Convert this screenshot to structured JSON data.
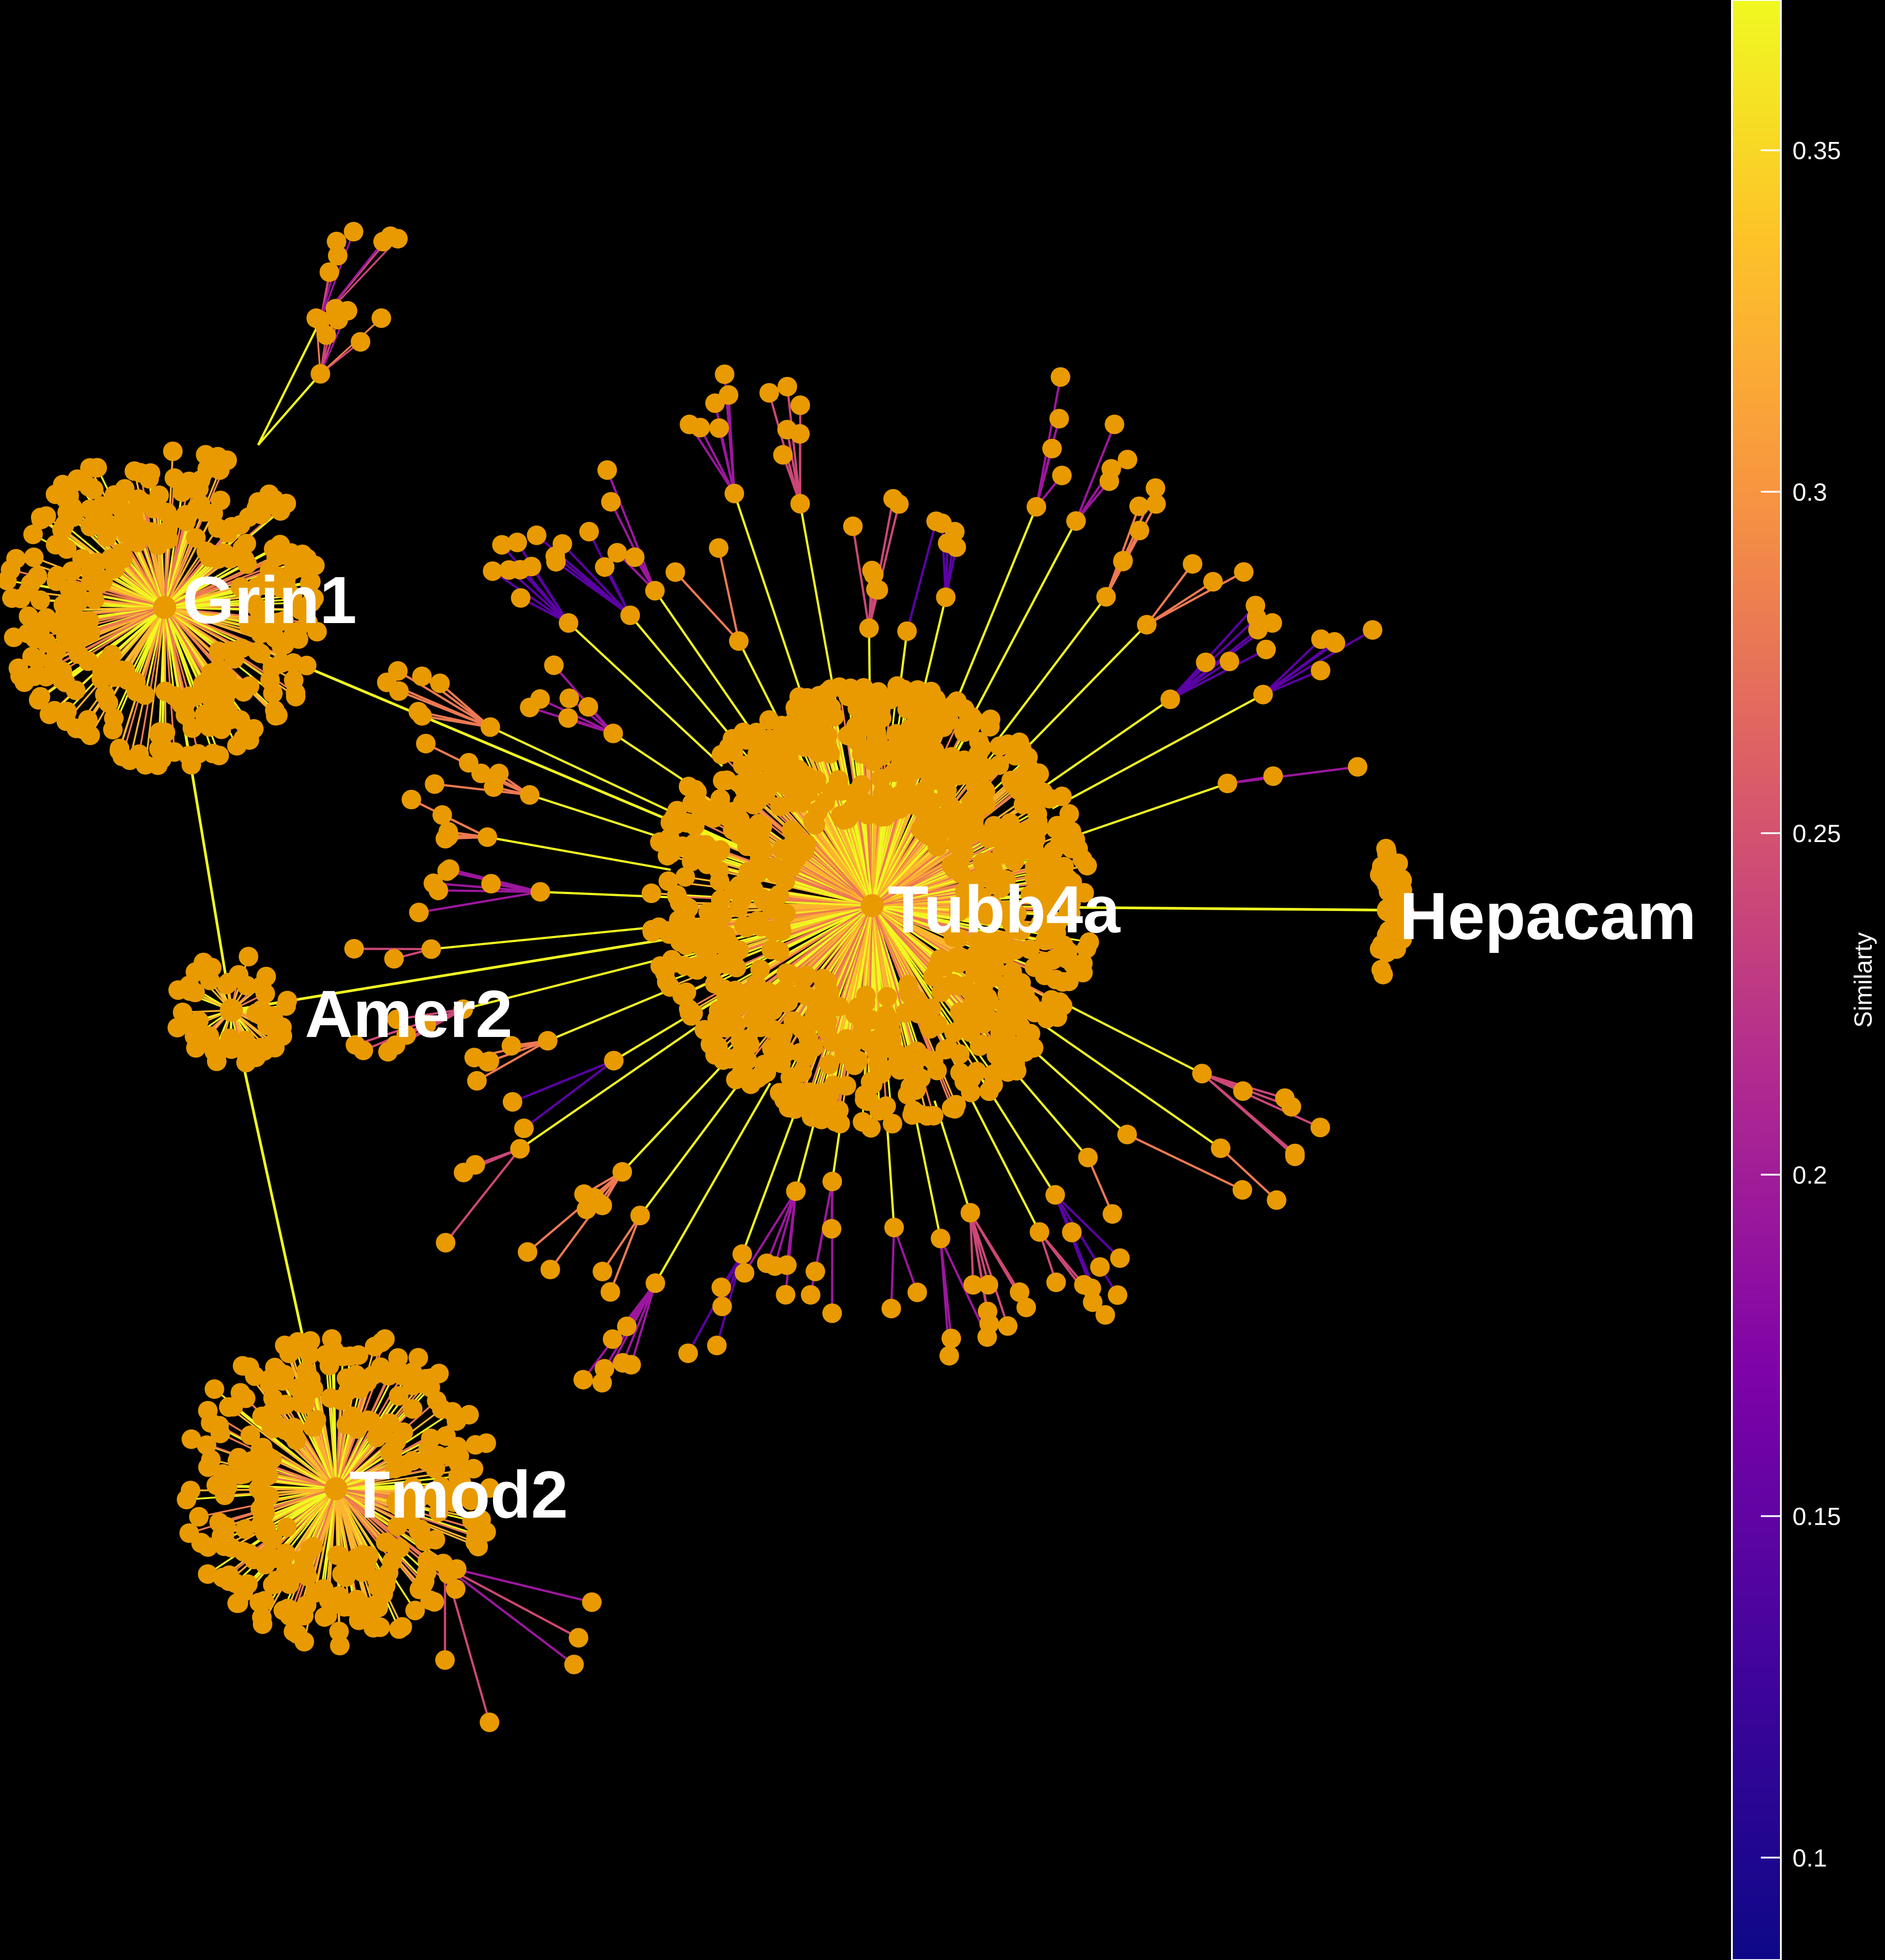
{
  "colors": {
    "background": "#000000",
    "node": "#e89a00",
    "label": "#ffffff",
    "edge_scale": [
      "#0d0887",
      "#5c01a6",
      "#9c179e",
      "#cc4778",
      "#ed7953",
      "#fdb42f",
      "#f0f921"
    ]
  },
  "network": {
    "hubs": [
      {
        "id": "tubb4a",
        "label": "Tubb4a",
        "leaf_count": 900
      },
      {
        "id": "grin1",
        "label": "Grin1",
        "leaf_count": 320
      },
      {
        "id": "tmod2",
        "label": "Tmod2",
        "leaf_count": 300
      },
      {
        "id": "hepacam",
        "label": "Hepacam",
        "leaf_count": 45
      },
      {
        "id": "amer2",
        "label": "Amer2",
        "leaf_count": 55
      }
    ],
    "links": [
      {
        "source": "grin1",
        "target": "tubb4a"
      },
      {
        "source": "grin1",
        "target": "amer2"
      },
      {
        "source": "amer2",
        "target": "tmod2"
      },
      {
        "source": "amer2",
        "target": "tubb4a"
      },
      {
        "source": "tubb4a",
        "target": "hepacam"
      }
    ]
  },
  "legend": {
    "title": "Similarty",
    "range": [
      0.085,
      0.372
    ],
    "ticks": [
      "0.35",
      "0.3",
      "0.25",
      "0.2",
      "0.15",
      "0.1"
    ],
    "tick_values": [
      0.35,
      0.3,
      0.25,
      0.2,
      0.15,
      0.1
    ]
  }
}
